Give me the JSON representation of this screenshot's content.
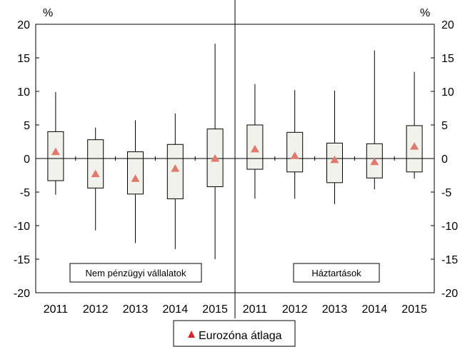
{
  "chart_data": {
    "type": "box",
    "y_unit_left": "%",
    "y_unit_right": "%",
    "ylim": [
      -20,
      20
    ],
    "yticks": [
      -20,
      -15,
      -10,
      -5,
      0,
      5,
      10,
      15,
      20
    ],
    "panels": [
      {
        "label": "Nem pénzügyi vállalatok",
        "categories": [
          "2011",
          "2012",
          "2013",
          "2014",
          "2015"
        ],
        "whisker_low": [
          -5.4,
          -10.7,
          -12.6,
          -13.5,
          -15.0
        ],
        "box_low": [
          -3.3,
          -4.4,
          -5.3,
          -6.0,
          -4.2
        ],
        "box_high": [
          4.0,
          2.8,
          1.0,
          2.1,
          4.4
        ],
        "whisker_high": [
          9.9,
          4.6,
          5.7,
          6.7,
          17.1
        ],
        "mean": [
          1.0,
          -2.3,
          -3.0,
          -1.5,
          0.0
        ]
      },
      {
        "label": "Háztartások",
        "categories": [
          "2011",
          "2012",
          "2013",
          "2014",
          "2015"
        ],
        "whisker_low": [
          -6.0,
          -6.0,
          -6.8,
          -4.6,
          -3.0
        ],
        "box_low": [
          -1.6,
          -2.0,
          -3.6,
          -2.9,
          -2.0
        ],
        "box_high": [
          5.0,
          3.9,
          2.3,
          2.2,
          4.9
        ],
        "whisker_high": [
          11.1,
          10.2,
          10.1,
          16.1,
          12.9
        ],
        "mean": [
          1.4,
          0.4,
          -0.2,
          -0.5,
          1.8
        ]
      }
    ],
    "legend": {
      "label": "Eurozóna átlaga",
      "marker": "triangle",
      "color": "#d9534f"
    },
    "colors": {
      "box_fill": "#f2f2ed",
      "mean_marker": "#e07a6e",
      "legend_marker": "#d62728",
      "line": "#000000"
    }
  }
}
